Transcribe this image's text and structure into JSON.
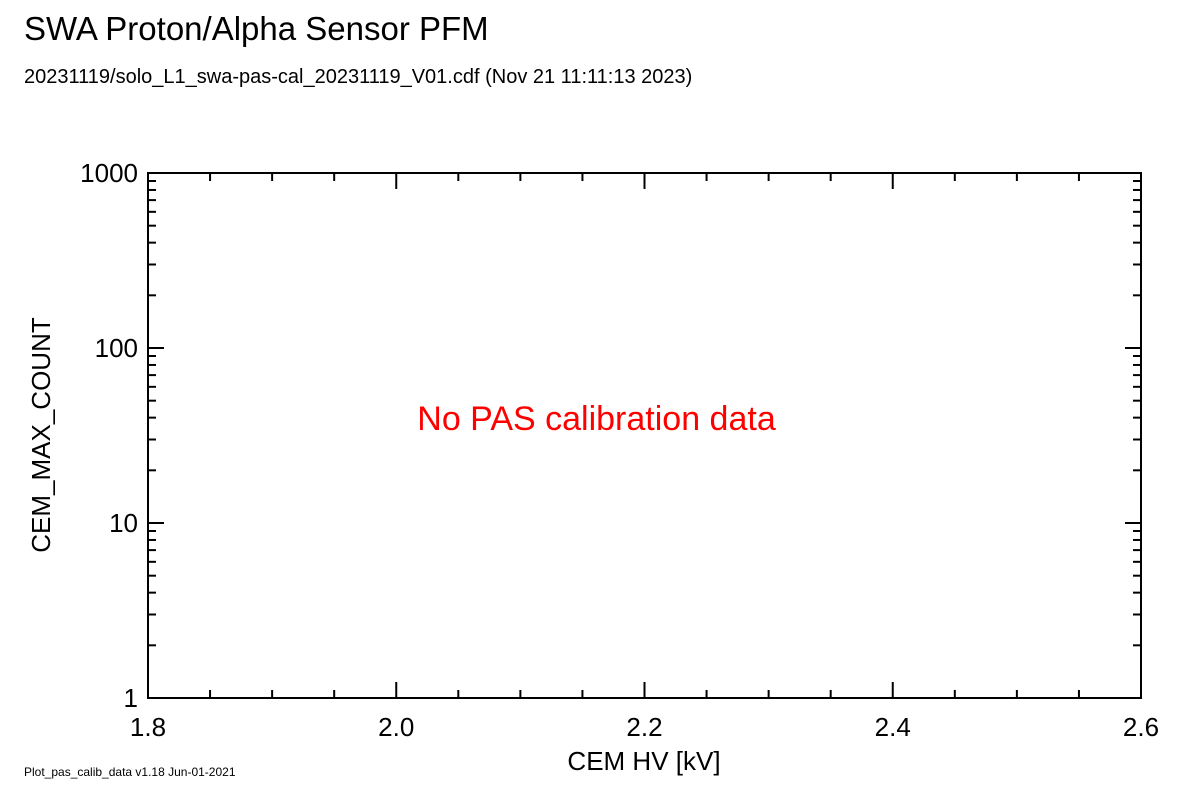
{
  "header": {
    "title": "SWA Proton/Alpha Sensor PFM",
    "subtitle": "20231119/solo_L1_swa-pas-cal_20231119_V01.cdf  (Nov 21 11:11:13 2023)"
  },
  "footer": {
    "text": "Plot_pas_calib_data v1.18 Jun-01-2021"
  },
  "chart_data": {
    "type": "scatter",
    "title": "SWA Proton/Alpha Sensor PFM",
    "subtitle": "20231119/solo_L1_swa-pas-cal_20231119_V01.cdf  (Nov 21 11:11:13 2023)",
    "xlabel": "CEM HV [kV]",
    "ylabel": "CEM_MAX_COUNT",
    "xlim": [
      1.8,
      2.6
    ],
    "ylim": [
      1,
      1000
    ],
    "yscale": "log",
    "x_ticks": [
      "1.8",
      "2.0",
      "2.2",
      "2.4",
      "2.6"
    ],
    "y_ticks": [
      "1",
      "10",
      "100",
      "1000"
    ],
    "x_tick_values": [
      1.8,
      2.0,
      2.2,
      2.4,
      2.6
    ],
    "y_tick_values": [
      1,
      10,
      100,
      1000
    ],
    "x_minor_step": 0.05,
    "grid": false,
    "series": [],
    "annotation": {
      "text": "No PAS calibration data",
      "color": "#ff0000",
      "x": 2.2,
      "y": 34
    }
  }
}
